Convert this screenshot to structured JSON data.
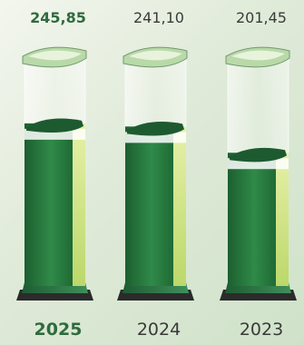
{
  "chart_data": {
    "type": "bar",
    "categories": [
      "2025",
      "2024",
      "2023"
    ],
    "values": [
      245.85,
      241.1,
      201.45
    ],
    "value_labels": [
      "245,85",
      "241,10",
      "201,45"
    ],
    "highlight_index": 0,
    "ylim": [
      0,
      350
    ],
    "title": "",
    "xlabel": "",
    "ylabel": "",
    "colors": {
      "dark_green": "#1f6a35",
      "mid_green": "#3b9a55",
      "light_green": "#d6e88a",
      "highlight_text": "#2f6b3e",
      "text": "#3a3a3a"
    }
  }
}
